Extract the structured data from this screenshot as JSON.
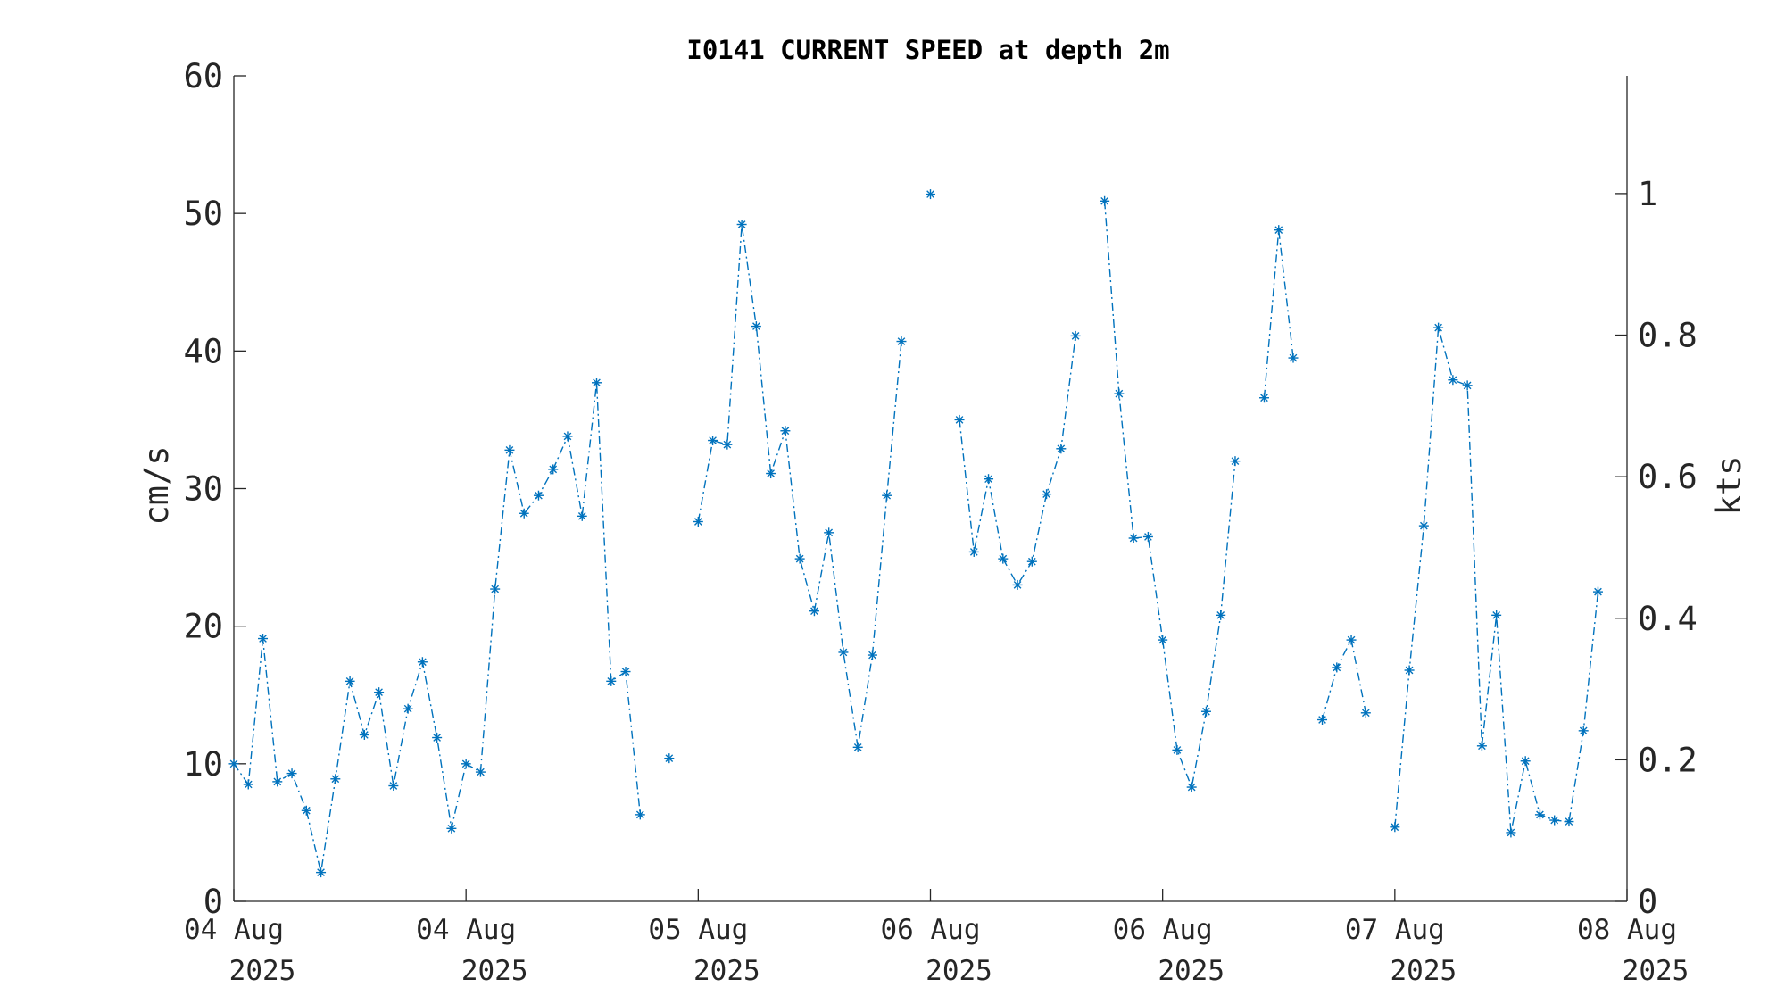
{
  "chart_data": {
    "type": "line",
    "title": "I0141 CURRENT SPEED at depth 2m",
    "ylabel": "cm/s",
    "ylabel_right": "kts",
    "ylim": [
      0,
      60
    ],
    "ylim_right": [
      0,
      1.1663
    ],
    "yticks": [
      "0",
      "10",
      "20",
      "30",
      "40",
      "50",
      "60"
    ],
    "yticks_right": [
      "0",
      "0.2",
      "0.4",
      "0.6",
      "0.8",
      "1"
    ],
    "xlim": [
      0,
      96
    ],
    "xticks": [
      {
        "line1": "04 Aug",
        "line2": "2025"
      },
      {
        "line1": "04 Aug",
        "line2": "2025"
      },
      {
        "line1": "05 Aug",
        "line2": "2025"
      },
      {
        "line1": "06 Aug",
        "line2": "2025"
      },
      {
        "line1": "06 Aug",
        "line2": "2025"
      },
      {
        "line1": "07 Aug",
        "line2": "2025"
      },
      {
        "line1": "08 Aug",
        "line2": "2025"
      }
    ],
    "line_style": "dash-dot",
    "marker": "asterisk",
    "color": "#0072BD",
    "series": [
      {
        "x": [
          0,
          1,
          2,
          3,
          4,
          5,
          6,
          7,
          8,
          9,
          10,
          11,
          12,
          13,
          14,
          15,
          16,
          17,
          18,
          19,
          20,
          21,
          22,
          23,
          24,
          25,
          26,
          27,
          28,
          29,
          30,
          31,
          32,
          33,
          34,
          35,
          36,
          37,
          38,
          39,
          40,
          41,
          42,
          43,
          44,
          45,
          46,
          47,
          48,
          49,
          50,
          51,
          52,
          53,
          54,
          55,
          56,
          57,
          58,
          59,
          60,
          61,
          62,
          63,
          64,
          65,
          66,
          67,
          68,
          69,
          70,
          71,
          72,
          73,
          74,
          75,
          76,
          77,
          78,
          79,
          80,
          81,
          82,
          83,
          84,
          85,
          86,
          87,
          88,
          89,
          90,
          91,
          92,
          93,
          94,
          95,
          96
        ],
        "values": [
          10.0,
          8.5,
          19.1,
          8.7,
          9.3,
          6.6,
          2.1,
          8.9,
          16.0,
          12.1,
          15.2,
          8.4,
          14.0,
          17.4,
          11.9,
          5.3,
          10.0,
          9.4,
          22.7,
          32.8,
          28.2,
          29.5,
          31.4,
          33.8,
          28.0,
          37.7,
          16.0,
          16.7,
          6.3,
          null,
          10.4,
          null,
          27.6,
          33.5,
          33.2,
          49.2,
          41.8,
          31.1,
          34.2,
          24.9,
          21.1,
          26.8,
          18.1,
          11.2,
          17.9,
          29.5,
          40.7,
          null,
          51.4,
          null,
          35.0,
          25.4,
          30.7,
          24.9,
          23.0,
          24.7,
          29.6,
          32.9,
          41.1,
          null,
          50.9,
          36.9,
          26.4,
          26.5,
          19.0,
          11.0,
          8.3,
          13.8,
          20.8,
          32.0,
          null,
          36.6,
          48.8,
          39.5,
          null,
          13.2,
          17.0,
          19.0,
          13.7,
          null,
          5.4,
          16.8,
          27.3,
          41.7,
          37.9,
          37.5,
          11.3,
          20.8,
          5.0,
          10.2,
          6.3,
          5.9,
          5.8,
          12.4,
          22.5,
          null,
          null
        ]
      }
    ]
  }
}
